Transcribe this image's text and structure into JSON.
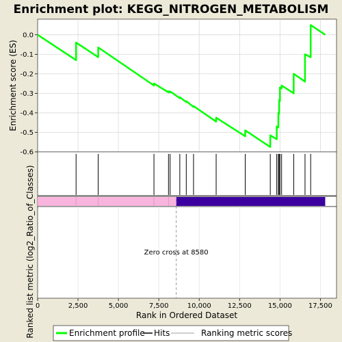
{
  "chart_data": {
    "type": "line",
    "title": "Enrichment plot: KEGG_NITROGEN_METABOLISM",
    "xlabel": "Rank in Ordered Dataset",
    "ylabel_top": "Enrichment score (ES)",
    "ylabel_bottom": "Ranked list metric (log2_Ratio_of_Classes)",
    "xlim": [
      0,
      18500
    ],
    "ylim": [
      -0.6,
      0.08
    ],
    "x_ticks": [
      0,
      2500,
      5000,
      7500,
      10000,
      12500,
      15000,
      17500
    ],
    "x_tick_labels": [
      "0",
      "2,500",
      "5,000",
      "7,500",
      "10,000",
      "12,500",
      "15,000",
      "17,500"
    ],
    "y_ticks": [
      0.0,
      -0.1,
      -0.2,
      -0.3,
      -0.4,
      -0.5,
      -0.6
    ],
    "y_tick_labels": [
      "0.0",
      "-0.1",
      "-0.2",
      "-0.3",
      "-0.4",
      "-0.5",
      "-0.6"
    ],
    "hits": [
      2380,
      3750,
      7200,
      8100,
      8200,
      8800,
      9200,
      9650,
      11050,
      12850,
      14400,
      14800,
      14900,
      14950,
      15000,
      15100,
      15850,
      16550,
      16900
    ],
    "series": [
      {
        "name": "Enrichment profile",
        "color": "#00ff00",
        "x": [
          0,
          2379,
          2380,
          3749,
          3750,
          7199,
          7200,
          8099,
          8100,
          8199,
          8200,
          8799,
          8800,
          9199,
          9200,
          9649,
          9650,
          11049,
          11050,
          12849,
          12850,
          14399,
          14400,
          14799,
          14800,
          14899,
          14900,
          14949,
          14950,
          14999,
          15000,
          15099,
          15100,
          15849,
          15850,
          16549,
          16550,
          16899,
          16900,
          17800
        ],
        "y": [
          0.0,
          -0.13,
          -0.04,
          -0.115,
          -0.065,
          -0.26,
          -0.25,
          -0.295,
          -0.29,
          -0.295,
          -0.29,
          -0.325,
          -0.32,
          -0.345,
          -0.34,
          -0.37,
          -0.365,
          -0.445,
          -0.425,
          -0.52,
          -0.49,
          -0.575,
          -0.515,
          -0.535,
          -0.47,
          -0.475,
          -0.4,
          -0.405,
          -0.335,
          -0.34,
          -0.27,
          -0.275,
          -0.26,
          -0.3,
          -0.2,
          -0.24,
          -0.1,
          -0.115,
          0.05,
          0.0
        ]
      }
    ],
    "zero_cross_label": "Zero cross at 8580",
    "zero_cross_x": 8580,
    "ranked_list": {
      "positive_color": "#f8b4dc",
      "negative_color": "#3c00a0",
      "cross_x": 8580,
      "end_x": 17800
    },
    "legend": {
      "placement": "bottom",
      "items": [
        {
          "label": "Enrichment profile",
          "color": "#00ff00"
        },
        {
          "label": "Hits",
          "color": "#000000"
        },
        {
          "label": "Ranking metric scores",
          "color": "#c0c0c0"
        }
      ]
    },
    "grid": true
  }
}
